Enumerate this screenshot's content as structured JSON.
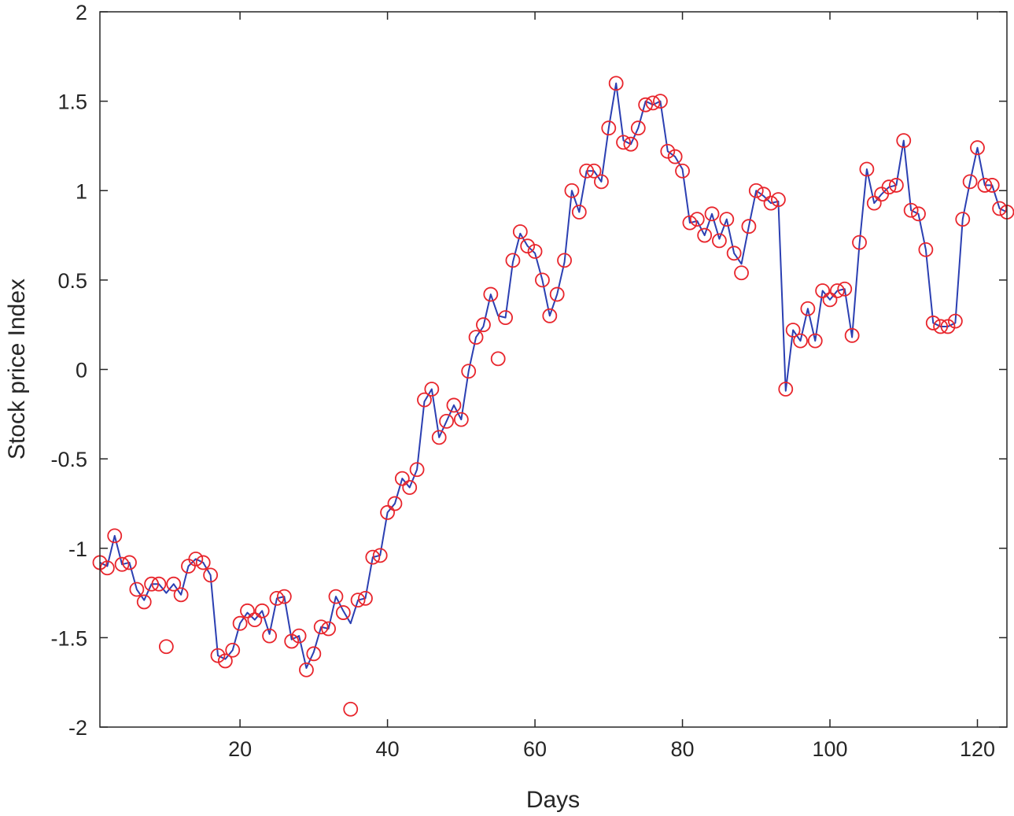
{
  "chart_data": {
    "type": "line",
    "title": "",
    "xlabel": "Days",
    "ylabel": "Stock price Index",
    "xlim": [
      1,
      124
    ],
    "ylim": [
      -2,
      2
    ],
    "xticks": [
      20,
      40,
      60,
      80,
      100,
      120
    ],
    "xtick_labels": [
      "20",
      "40",
      "60",
      "80",
      "100",
      "120"
    ],
    "yticks": [
      -2,
      -1.5,
      -1,
      -0.5,
      0,
      0.5,
      1,
      1.5,
      2
    ],
    "ytick_labels": [
      "-2",
      "-1.5",
      "-1",
      "-0.5",
      "0",
      "0.5",
      "1",
      "1.5",
      "2"
    ],
    "grid": false,
    "box": true,
    "x": [
      1,
      2,
      3,
      4,
      5,
      6,
      7,
      8,
      9,
      10,
      11,
      12,
      13,
      14,
      15,
      16,
      17,
      18,
      19,
      20,
      21,
      22,
      23,
      24,
      25,
      26,
      27,
      28,
      29,
      30,
      31,
      32,
      33,
      34,
      35,
      36,
      37,
      38,
      39,
      40,
      41,
      42,
      43,
      44,
      45,
      46,
      47,
      48,
      49,
      50,
      51,
      52,
      53,
      54,
      55,
      56,
      57,
      58,
      59,
      60,
      61,
      62,
      63,
      64,
      65,
      66,
      67,
      68,
      69,
      70,
      71,
      72,
      73,
      74,
      75,
      76,
      77,
      78,
      79,
      80,
      81,
      82,
      83,
      84,
      85,
      86,
      87,
      88,
      89,
      90,
      91,
      92,
      93,
      94,
      95,
      96,
      97,
      98,
      99,
      100,
      101,
      102,
      103,
      104,
      105,
      106,
      107,
      108,
      109,
      110,
      111,
      112,
      113,
      114,
      115,
      116,
      117,
      118,
      119,
      120,
      121,
      122,
      123,
      124
    ],
    "series": [
      {
        "style": "line",
        "color": "#2b3fb2",
        "values": [
          -1.08,
          -1.1,
          -0.93,
          -1.09,
          -1.08,
          -1.23,
          -1.29,
          -1.2,
          -1.2,
          -1.25,
          -1.2,
          -1.26,
          -1.1,
          -1.06,
          -1.08,
          -1.15,
          -1.6,
          -1.62,
          -1.57,
          -1.42,
          -1.36,
          -1.4,
          -1.35,
          -1.48,
          -1.28,
          -1.27,
          -1.51,
          -1.49,
          -1.67,
          -1.58,
          -1.44,
          -1.45,
          -1.27,
          -1.35,
          -1.42,
          -1.29,
          -1.28,
          -1.05,
          -1.04,
          -0.8,
          -0.75,
          -0.61,
          -0.66,
          -0.56,
          -0.18,
          -0.11,
          -0.38,
          -0.29,
          -0.2,
          -0.28,
          -0.01,
          0.18,
          0.24,
          0.42,
          0.3,
          0.29,
          0.6,
          0.76,
          0.69,
          0.65,
          0.5,
          0.3,
          0.42,
          0.6,
          1.0,
          0.88,
          1.11,
          1.11,
          1.05,
          1.35,
          1.6,
          1.28,
          1.26,
          1.35,
          1.5,
          1.48,
          1.5,
          1.22,
          1.19,
          1.12,
          0.82,
          0.83,
          0.75,
          0.87,
          0.73,
          0.84,
          0.65,
          0.59,
          0.8,
          1.0,
          0.97,
          0.93,
          0.94,
          -0.12,
          0.22,
          0.16,
          0.34,
          0.16,
          0.44,
          0.39,
          0.44,
          0.45,
          0.18,
          0.7,
          1.12,
          0.93,
          0.98,
          1.02,
          1.03,
          1.28,
          0.89,
          0.87,
          0.67,
          0.26,
          0.24,
          0.24,
          0.26,
          0.84,
          1.05,
          1.24,
          1.03,
          1.03,
          0.9,
          0.88
        ]
      },
      {
        "style": "markers",
        "marker": "circle",
        "color": "#e8252c",
        "values": [
          -1.08,
          -1.11,
          -0.93,
          -1.09,
          -1.08,
          -1.23,
          -1.3,
          -1.2,
          -1.2,
          -1.55,
          -1.2,
          -1.26,
          -1.1,
          -1.06,
          -1.08,
          -1.15,
          -1.6,
          -1.63,
          -1.57,
          -1.42,
          -1.35,
          -1.4,
          -1.35,
          -1.49,
          -1.28,
          -1.27,
          -1.52,
          -1.49,
          -1.68,
          -1.59,
          -1.44,
          -1.45,
          -1.27,
          -1.36,
          -1.9,
          -1.29,
          -1.28,
          -1.05,
          -1.04,
          -0.8,
          -0.75,
          -0.61,
          -0.66,
          -0.56,
          -0.17,
          -0.11,
          -0.38,
          -0.29,
          -0.2,
          -0.28,
          -0.01,
          0.18,
          0.25,
          0.42,
          0.06,
          0.29,
          0.61,
          0.77,
          0.69,
          0.66,
          0.5,
          0.3,
          0.42,
          0.61,
          1.0,
          0.88,
          1.11,
          1.11,
          1.05,
          1.35,
          1.6,
          1.27,
          1.26,
          1.35,
          1.48,
          1.49,
          1.5,
          1.22,
          1.19,
          1.11,
          0.82,
          0.84,
          0.75,
          0.87,
          0.72,
          0.84,
          0.65,
          0.54,
          0.8,
          1.0,
          0.98,
          0.93,
          0.95,
          -0.11,
          0.22,
          0.16,
          0.34,
          0.16,
          0.44,
          0.39,
          0.44,
          0.45,
          0.19,
          0.71,
          1.12,
          0.93,
          0.98,
          1.02,
          1.03,
          1.28,
          0.89,
          0.87,
          0.67,
          0.26,
          0.24,
          0.24,
          0.27,
          0.84,
          1.05,
          1.24,
          1.03,
          1.03,
          0.9,
          0.88
        ]
      }
    ]
  }
}
